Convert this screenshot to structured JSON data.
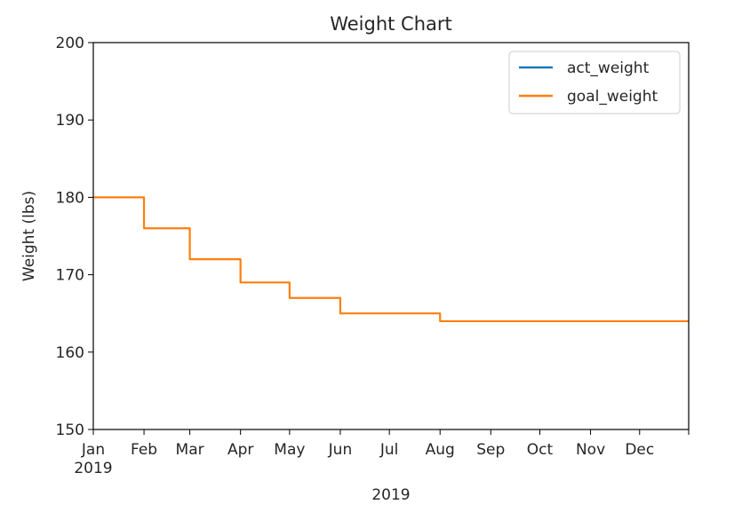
{
  "chart_data": {
    "type": "line",
    "title": "Weight Chart",
    "xlabel": "2019",
    "ylabel": "Weight (lbs)",
    "xlim": [
      "2019-01-01",
      "2019-12-31"
    ],
    "ylim": [
      150,
      200
    ],
    "y_ticks": [
      150,
      160,
      170,
      180,
      190,
      200
    ],
    "x_ticks": [
      {
        "date": "2019-01-01",
        "label": "Jan",
        "sublabel": "2019"
      },
      {
        "date": "2019-02-01",
        "label": "Feb"
      },
      {
        "date": "2019-03-01",
        "label": "Mar"
      },
      {
        "date": "2019-04-01",
        "label": "Apr"
      },
      {
        "date": "2019-05-01",
        "label": "May"
      },
      {
        "date": "2019-06-01",
        "label": "Jun"
      },
      {
        "date": "2019-07-01",
        "label": "Jul"
      },
      {
        "date": "2019-08-01",
        "label": "Aug"
      },
      {
        "date": "2019-09-01",
        "label": "Sep"
      },
      {
        "date": "2019-10-01",
        "label": "Oct"
      },
      {
        "date": "2019-11-01",
        "label": "Nov"
      },
      {
        "date": "2019-12-01",
        "label": "Dec"
      }
    ],
    "grid": false,
    "legend": "upper-right",
    "series": [
      {
        "name": "act_weight",
        "color": "#1f77b4",
        "points": []
      },
      {
        "name": "goal_weight",
        "color": "#ff7f0e",
        "step": "post",
        "points": [
          {
            "x": "2019-01-01",
            "y": 180
          },
          {
            "x": "2019-02-01",
            "y": 176
          },
          {
            "x": "2019-03-01",
            "y": 172
          },
          {
            "x": "2019-04-01",
            "y": 169
          },
          {
            "x": "2019-05-01",
            "y": 167
          },
          {
            "x": "2019-06-01",
            "y": 165
          },
          {
            "x": "2019-08-01",
            "y": 164
          },
          {
            "x": "2019-12-31",
            "y": 164
          }
        ]
      }
    ]
  }
}
